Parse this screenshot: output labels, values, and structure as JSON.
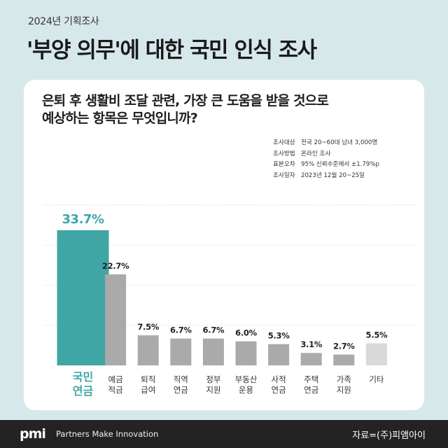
{
  "header": {
    "kicker": "2024년 기획조사",
    "headline": "'부양 의무'에 대한 국민 인식 조사"
  },
  "card": {
    "question_line1": "은퇴 후 생활비 조달 관련, 가장 큰 도움을 받을 것으로",
    "question_line2": "예상하는 항목은 무엇입니까?",
    "meta": [
      {
        "key": "조사대상",
        "value": "전국 20~60대 남녀 3,000명"
      },
      {
        "key": "조사방법",
        "value": "온라인 조사"
      },
      {
        "key": "표본오차",
        "value": "95% 신뢰수준에서 ±1.79%p"
      },
      {
        "key": "조사일자",
        "value": "2023년 12월 20~25일"
      }
    ]
  },
  "chart_data": {
    "type": "bar",
    "categories": [
      [
        "국민",
        "연금"
      ],
      [
        "예금",
        "적금"
      ],
      [
        "퇴직",
        "급여"
      ],
      [
        "직역",
        "연금"
      ],
      [
        "정부",
        "지원"
      ],
      [
        "부동산",
        "운용"
      ],
      [
        "사적",
        "연금"
      ],
      [
        "주택",
        "연금"
      ],
      [
        "가족",
        "지원"
      ],
      [
        "기타"
      ]
    ],
    "values": [
      33.7,
      22.7,
      7.5,
      6.7,
      6.7,
      6.0,
      5.3,
      3.1,
      2.7,
      5.5
    ],
    "value_labels": [
      "33.7%",
      "22.7%",
      "7.5%",
      "6.7%",
      "6.7%",
      "6.0%",
      "5.3%",
      "3.1%",
      "2.7%",
      "5.5%"
    ],
    "unit": "%",
    "ylim": [
      0,
      40
    ],
    "grid": true,
    "colors": {
      "highlight": "#3fa6a5",
      "default": "#aaaaaa",
      "other": "#d9d9d9",
      "highlight_label": "#3fa6a5",
      "label": "#222222"
    }
  },
  "footer": {
    "logo": "pmi",
    "tagline": "Partners Make Innovation",
    "source": "자료=(주)피앰아이"
  }
}
